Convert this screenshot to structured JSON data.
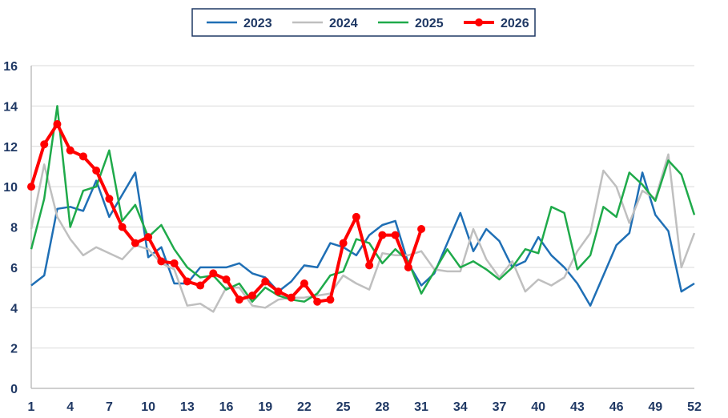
{
  "chart_data": {
    "type": "line",
    "title": "",
    "xlabel": "",
    "ylabel": "",
    "xlim": [
      1,
      52
    ],
    "ylim": [
      0,
      16
    ],
    "x_ticks": [
      1,
      4,
      7,
      10,
      13,
      16,
      19,
      22,
      25,
      28,
      31,
      34,
      37,
      40,
      43,
      46,
      49,
      52
    ],
    "y_ticks": [
      0,
      2,
      4,
      6,
      8,
      10,
      12,
      14,
      16
    ],
    "grid": "horizontal",
    "legend_position": "top-center",
    "series": [
      {
        "name": "2023",
        "color": "#1f6fb5",
        "markers": false,
        "values": [
          5.1,
          5.6,
          8.9,
          9.0,
          8.8,
          10.3,
          8.5,
          9.6,
          10.7,
          6.5,
          7.0,
          5.2,
          5.2,
          6.0,
          6.0,
          6.0,
          6.2,
          5.7,
          5.5,
          4.8,
          5.3,
          6.1,
          6.0,
          7.2,
          7.0,
          6.6,
          7.6,
          8.1,
          8.3,
          6.2,
          5.1,
          5.7,
          7.2,
          8.7,
          6.8,
          7.9,
          7.3,
          6.0,
          6.3,
          7.5,
          6.6,
          6.0,
          5.2,
          4.1,
          5.6,
          7.1,
          7.7,
          10.7,
          8.6,
          7.8,
          4.8,
          5.2
        ]
      },
      {
        "name": "2024",
        "color": "#bfbfbf",
        "markers": false,
        "values": [
          7.9,
          11.1,
          8.5,
          7.4,
          6.6,
          7.0,
          6.7,
          6.4,
          7.1,
          6.9,
          6.2,
          5.9,
          4.1,
          4.2,
          3.8,
          5.0,
          5.0,
          4.1,
          4.0,
          4.4,
          4.5,
          4.5,
          4.6,
          4.7,
          5.6,
          5.2,
          4.9,
          6.7,
          6.6,
          6.6,
          6.8,
          5.9,
          5.8,
          5.8,
          7.9,
          6.4,
          5.5,
          6.3,
          4.8,
          5.4,
          5.1,
          5.5,
          6.8,
          7.7,
          10.8,
          10.0,
          8.2,
          9.8,
          9.4,
          11.6,
          6.0,
          7.7
        ]
      },
      {
        "name": "2025",
        "color": "#1faa4a",
        "markers": false,
        "values": [
          6.9,
          9.4,
          14.0,
          8.0,
          9.8,
          10.0,
          11.8,
          8.3,
          9.1,
          7.5,
          8.1,
          6.9,
          6.0,
          5.5,
          5.6,
          4.9,
          5.2,
          4.3,
          5.0,
          4.6,
          4.4,
          4.3,
          4.7,
          5.6,
          5.8,
          7.4,
          7.2,
          6.2,
          6.9,
          6.3,
          4.7,
          5.8,
          6.9,
          6.0,
          6.3,
          5.9,
          5.4,
          6.0,
          6.9,
          6.7,
          9.0,
          8.7,
          5.9,
          6.6,
          9.0,
          8.5,
          10.7,
          10.1,
          9.3,
          11.3,
          10.6,
          8.6
        ]
      },
      {
        "name": "2026",
        "color": "#ff0000",
        "markers": true,
        "values": [
          10.0,
          12.1,
          13.1,
          11.8,
          11.5,
          10.8,
          9.4,
          8.0,
          7.2,
          7.5,
          6.3,
          6.2,
          5.3,
          5.1,
          5.7,
          5.4,
          4.4,
          4.6,
          5.3,
          4.8,
          4.5,
          5.2,
          4.3,
          4.4,
          7.2,
          8.5,
          6.1,
          7.6,
          7.6,
          6.0,
          7.9
        ]
      }
    ]
  }
}
